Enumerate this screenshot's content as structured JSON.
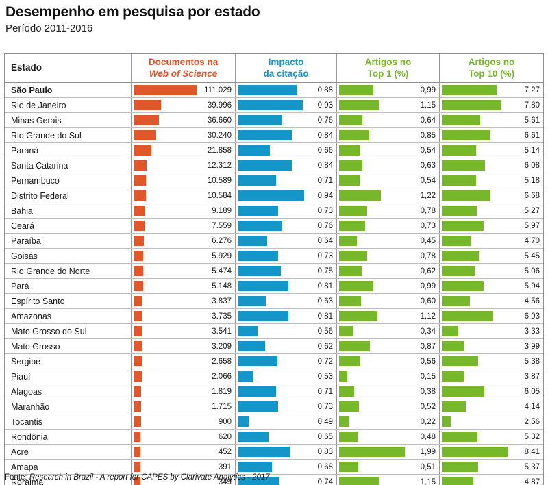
{
  "header": {
    "title": "Desempenho em pesquisa por estado",
    "subtitle": "Período 2011-2016"
  },
  "colors": {
    "docs": "#E0572C",
    "impacto": "#1496C9",
    "top": "#76B72B"
  },
  "table": {
    "columns": {
      "estado": {
        "label": "Estado"
      },
      "docs": {
        "line1": "Documentos na",
        "line2": "Web of Science",
        "color": "#E0572C"
      },
      "impacto": {
        "line1": "Impacto",
        "line2": "da citação",
        "color": "#1496C9"
      },
      "top1": {
        "line1": "Artigos no",
        "line2": "Top 1 (%)",
        "color": "#76B72B"
      },
      "top10": {
        "line1": "Artigos no",
        "line2": "Top 10 (%)",
        "color": "#76B72B"
      }
    }
  },
  "chart_data": {
    "type": "bar",
    "title": "Desempenho em pesquisa por estado",
    "subtitle": "Período 2011-2016",
    "orientation": "horizontal",
    "legend_position": "column-headers",
    "grid": false,
    "emphasized_category": "São Paulo",
    "categories": [
      "São Paulo",
      "Rio de Janeiro",
      "Minas Gerais",
      "Rio Grande do Sul",
      "Paraná",
      "Santa Catarina",
      "Pernambuco",
      "Distrito Federal",
      "Bahia",
      "Ceará",
      "Paraíba",
      "Goisás",
      "Rio Grande do Norte",
      "Pará",
      "Espírito Santo",
      "Amazonas",
      "Mato Grosso do Sul",
      "Mato Grosso",
      "Sergipe",
      "Piauí",
      "Alagoas",
      "Maranhão",
      "Tocantis",
      "Rondônia",
      "Acre",
      "Amapa",
      "Roraima"
    ],
    "series": [
      {
        "name": "Documentos na Web of Science",
        "color": "#E0572C",
        "values": [
          111029,
          39996,
          36660,
          30240,
          21858,
          12312,
          10589,
          10584,
          9189,
          7559,
          6276,
          5929,
          5474,
          5148,
          3837,
          3735,
          3541,
          3209,
          2658,
          2066,
          1819,
          1715,
          900,
          620,
          452,
          391,
          349
        ],
        "labels": [
          "111.029",
          "39.996",
          "36.660",
          "30.240",
          "21.858",
          "12.312",
          "10.589",
          "10.584",
          "9.189",
          "7.559",
          "6.276",
          "5.929",
          "5.474",
          "5.148",
          "3.837",
          "3.735",
          "3.541",
          "3.209",
          "2.658",
          "2.066",
          "1.819",
          "1.715",
          "900",
          "620",
          "452",
          "391",
          "349"
        ]
      },
      {
        "name": "Impacto da citação",
        "color": "#1496C9",
        "values": [
          0.88,
          0.93,
          0.76,
          0.84,
          0.66,
          0.84,
          0.71,
          0.94,
          0.73,
          0.76,
          0.64,
          0.73,
          0.75,
          0.81,
          0.63,
          0.81,
          0.56,
          0.62,
          0.72,
          0.53,
          0.71,
          0.73,
          0.49,
          0.65,
          0.83,
          0.68,
          0.74
        ],
        "labels": [
          "0,88",
          "0,93",
          "0,76",
          "0,84",
          "0,66",
          "0,84",
          "0,71",
          "0,94",
          "0,73",
          "0,76",
          "0,64",
          "0,73",
          "0,75",
          "0,81",
          "0,63",
          "0,81",
          "0,56",
          "0,62",
          "0,72",
          "0,53",
          "0,71",
          "0,73",
          "0,49",
          "0,65",
          "0,83",
          "0,68",
          "0,74"
        ]
      },
      {
        "name": "Artigos no Top 1 (%)",
        "color": "#76B72B",
        "values": [
          0.99,
          1.15,
          0.64,
          0.85,
          0.54,
          0.63,
          0.54,
          1.22,
          0.78,
          0.73,
          0.45,
          0.78,
          0.62,
          0.99,
          0.6,
          1.12,
          0.34,
          0.87,
          0.56,
          0.15,
          0.38,
          0.52,
          0.22,
          0.48,
          1.99,
          0.51,
          1.15
        ],
        "labels": [
          "0,99",
          "1,15",
          "0,64",
          "0,85",
          "0,54",
          "0,63",
          "0,54",
          "1,22",
          "0,78",
          "0,73",
          "0,45",
          "0,78",
          "0,62",
          "0,99",
          "0,60",
          "1,12",
          "0,34",
          "0,87",
          "0,56",
          "0,15",
          "0,38",
          "0,52",
          "0,22",
          "0,48",
          "1,99",
          "0,51",
          "1,15"
        ]
      },
      {
        "name": "Artigos no Top 10 (%)",
        "color": "#76B72B",
        "values": [
          7.27,
          7.8,
          5.61,
          6.61,
          5.14,
          6.08,
          5.18,
          6.68,
          5.27,
          5.97,
          4.7,
          5.45,
          5.06,
          5.94,
          4.56,
          6.93,
          3.33,
          3.99,
          5.38,
          3.87,
          6.05,
          4.14,
          2.56,
          5.32,
          8.41,
          5.37,
          4.87
        ],
        "labels": [
          "7,27",
          "7,80",
          "5,61",
          "6,61",
          "5,14",
          "6,08",
          "5,18",
          "6,68",
          "5,27",
          "5,97",
          "4,70",
          "5,45",
          "5,06",
          "5,94",
          "4,56",
          "6,93",
          "3,33",
          "3,99",
          "5,38",
          "3,87",
          "6,05",
          "4,14",
          "2,56",
          "5,32",
          "8,41",
          "5,37",
          "4,87"
        ]
      }
    ],
    "axes_hint": {
      "docs_max": 111029,
      "impacto_visible_range": [
        0.4,
        1.0
      ],
      "top1_visible_range": [
        0,
        2.1
      ],
      "top10_visible_range": [
        1.65,
        8.5
      ]
    }
  },
  "footer": {
    "prefix": "Fonte: ",
    "source": "Research in Brazil - A report for CAPES by Clarivate Analytics - 2017"
  }
}
